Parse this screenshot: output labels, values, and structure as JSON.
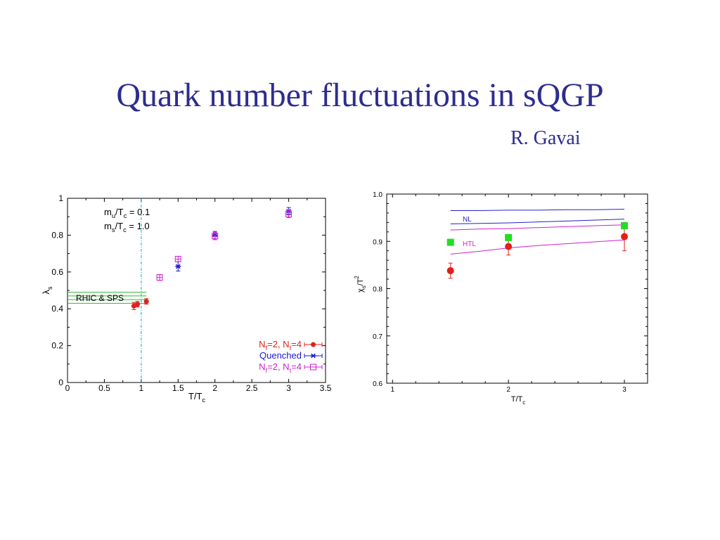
{
  "slide": {
    "title": "Quark number fluctuations in sQGP",
    "author": "R. Gavai"
  },
  "chart_data": [
    {
      "type": "scatter",
      "xlabel": "T/T",
      "xlabel_sub": "c",
      "ylabel": "λ",
      "ylabel_sub": "s",
      "xlim": [
        0,
        3.5
      ],
      "ylim": [
        0,
        1
      ],
      "xticks": [
        0,
        0.5,
        1,
        1.5,
        2,
        2.5,
        3,
        3.5
      ],
      "xtick_labels": [
        "0",
        "0.5",
        "1",
        "1.5",
        "2",
        "2.5",
        "3",
        "3.5"
      ],
      "yticks": [
        0,
        0.2,
        0.4,
        0.6,
        0.8,
        1
      ],
      "ytick_labels": [
        "0",
        "0.2",
        "0.4",
        "0.6",
        "0.8",
        "1"
      ],
      "annotations": {
        "mass_line1": {
          "m": "m",
          "sub": "u",
          "rest": "/T",
          "sub2": "c",
          "value": " = 0.1"
        },
        "mass_line2": {
          "m": "m",
          "sub": "s",
          "rest": "/T",
          "sub2": "c",
          "value": " = 1.0"
        },
        "band_label": "RHIC & SPS"
      },
      "vline_x": 1.0,
      "band": {
        "y_values": [
          0.43,
          0.45,
          0.47,
          0.49
        ]
      },
      "legend_position": "bottom-right",
      "series": [
        {
          "name": "N_f=2, N_t=4",
          "label_parts": [
            "N",
            "f",
            "=2, N",
            "t",
            "=4"
          ],
          "color": "#e0201b",
          "marker": "filled-circle",
          "points": [
            {
              "x": 0.9,
              "y": 0.415,
              "err": 0.02
            },
            {
              "x": 0.95,
              "y": 0.425,
              "err": 0.015
            },
            {
              "x": 1.07,
              "y": 0.44,
              "err": 0.015
            }
          ]
        },
        {
          "name": "Quenched",
          "label_parts": [
            "Quenched"
          ],
          "color": "#1a1ad0",
          "marker": "star",
          "points": [
            {
              "x": 1.5,
              "y": 0.63,
              "err": 0.025
            },
            {
              "x": 2.0,
              "y": 0.8,
              "err": 0.02
            },
            {
              "x": 3.0,
              "y": 0.93,
              "err": 0.02
            }
          ]
        },
        {
          "name": "N_f=2, N_t=4 (open)",
          "label_parts": [
            "N",
            "f",
            "=2, N",
            "t",
            "=4"
          ],
          "color": "#d020d0",
          "marker": "open-square",
          "points": [
            {
              "x": 1.25,
              "y": 0.57,
              "err": 0.015
            },
            {
              "x": 1.5,
              "y": 0.67,
              "err": 0.015
            },
            {
              "x": 2.0,
              "y": 0.795,
              "err": 0.02
            },
            {
              "x": 3.0,
              "y": 0.915,
              "err": 0.02
            }
          ]
        }
      ]
    },
    {
      "type": "scatter",
      "xlabel": "T/T",
      "xlabel_sub": "c",
      "ylabel": "χ",
      "ylabel_sub": "s",
      "ylabel_rest": "/T",
      "ylabel_sup": "2",
      "xlim": [
        0.95,
        3.2
      ],
      "ylim": [
        0.6,
        1.0
      ],
      "xticks": [
        1,
        2,
        3
      ],
      "xtick_labels": [
        "1",
        "2",
        "3"
      ],
      "yticks": [
        0.6,
        0.7,
        0.8,
        0.9,
        1.0
      ],
      "ytick_labels": [
        "0.6",
        "0.7",
        "0.8",
        "0.9",
        "1.0"
      ],
      "curve_labels": {
        "nl": "NL",
        "htl": "HTL"
      },
      "series": [
        {
          "name": "red",
          "color": "#e0201b",
          "marker": "filled-circle",
          "points": [
            {
              "x": 1.5,
              "y": 0.838,
              "err": 0.016
            },
            {
              "x": 2.0,
              "y": 0.889,
              "err": 0.018
            },
            {
              "x": 3.0,
              "y": 0.91,
              "err": 0.03
            }
          ]
        },
        {
          "name": "green",
          "color": "#22dd22",
          "marker": "filled-square",
          "points": [
            {
              "x": 1.5,
              "y": 0.898,
              "err": 0.0
            },
            {
              "x": 2.0,
              "y": 0.908,
              "err": 0.0
            },
            {
              "x": 3.0,
              "y": 0.933,
              "err": 0.0
            }
          ]
        }
      ],
      "curves": [
        {
          "name": "NL-top",
          "color": "#2222cc",
          "x": [
            1.5,
            1.75,
            2.0,
            2.25,
            2.5,
            2.75,
            3.0
          ],
          "y": [
            0.965,
            0.965,
            0.966,
            0.966,
            0.967,
            0.967,
            0.968
          ]
        },
        {
          "name": "NL-lower",
          "color": "#2222cc",
          "x": [
            1.5,
            1.75,
            2.0,
            2.25,
            2.5,
            2.75,
            3.0
          ],
          "y": [
            0.937,
            0.938,
            0.939,
            0.941,
            0.943,
            0.945,
            0.947
          ]
        },
        {
          "name": "HTL-upper",
          "color": "#d020d0",
          "x": [
            1.5,
            1.75,
            2.0,
            2.25,
            2.5,
            2.75,
            3.0
          ],
          "y": [
            0.924,
            0.926,
            0.927,
            0.929,
            0.931,
            0.933,
            0.935
          ]
        },
        {
          "name": "HTL-lower",
          "color": "#d020d0",
          "x": [
            1.5,
            1.75,
            2.0,
            2.25,
            2.5,
            2.75,
            3.0
          ],
          "y": [
            0.873,
            0.879,
            0.886,
            0.891,
            0.895,
            0.899,
            0.903
          ]
        }
      ]
    }
  ]
}
